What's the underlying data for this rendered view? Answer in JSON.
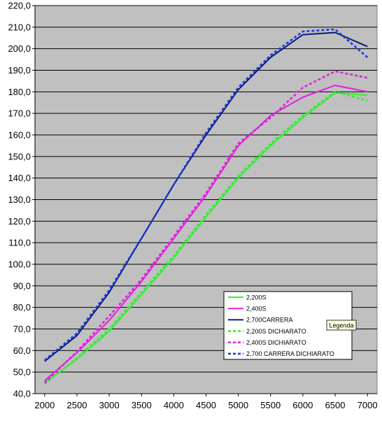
{
  "chart_data": {
    "type": "line",
    "title": "",
    "xlabel": "",
    "ylabel": "",
    "x": [
      2000,
      2500,
      3000,
      3500,
      4000,
      4500,
      5000,
      5500,
      6000,
      6500,
      7000
    ],
    "xlim": [
      1850,
      7150
    ],
    "ylim": [
      40,
      220
    ],
    "x_ticks": [
      "2000",
      "2500",
      "3000",
      "3500",
      "4000",
      "4500",
      "5000",
      "5500",
      "6000",
      "6500",
      "7000"
    ],
    "y_ticks": [
      "40,0",
      "50,0",
      "60,0",
      "70,0",
      "80,0",
      "90,0",
      "100,0",
      "110,0",
      "120,0",
      "130,0",
      "140,0",
      "150,0",
      "160,0",
      "170,0",
      "180,0",
      "190,0",
      "200,0",
      "210,0",
      "220,0"
    ],
    "grid": true,
    "plot_background": "#c0c0c0",
    "legend_position": "lower-right",
    "series": [
      {
        "name": "2,200S",
        "color": "#33ee33",
        "dash": "solid",
        "points": [
          [
            2000,
            45.0
          ],
          [
            2500,
            56.0
          ],
          [
            3000,
            69.0
          ],
          [
            3500,
            86.0
          ],
          [
            4000,
            103.0
          ],
          [
            4500,
            122.0
          ],
          [
            5000,
            140.0
          ],
          [
            5500,
            155.0
          ],
          [
            6000,
            168.0
          ],
          [
            6500,
            179.5
          ],
          [
            7000,
            178.5
          ]
        ]
      },
      {
        "name": "2,400S",
        "color": "#e020e0",
        "dash": "solid",
        "points": [
          [
            2000,
            46.0
          ],
          [
            2500,
            59.0
          ],
          [
            3000,
            74.0
          ],
          [
            3500,
            92.0
          ],
          [
            4000,
            112.0
          ],
          [
            4500,
            132.0
          ],
          [
            5000,
            155.0
          ],
          [
            5500,
            169.0
          ],
          [
            6000,
            177.5
          ],
          [
            6500,
            183.0
          ],
          [
            7000,
            180.0
          ]
        ]
      },
      {
        "name": "2,700CARRERA",
        "color": "#0a1a7a",
        "dash": "solid",
        "points": [
          [
            2000,
            55.0
          ],
          [
            2500,
            67.0
          ],
          [
            3000,
            87.0
          ],
          [
            3500,
            112.0
          ],
          [
            4000,
            137.0
          ],
          [
            4500,
            160.0
          ],
          [
            5000,
            181.0
          ],
          [
            5500,
            196.0
          ],
          [
            6000,
            206.5
          ],
          [
            6500,
            207.5
          ],
          [
            7000,
            201.0
          ]
        ]
      },
      {
        "name": "2,200S DICHIARATO",
        "color": "#33ee33",
        "dash": "dotted",
        "points": [
          [
            2000,
            44.5
          ],
          [
            2500,
            56.5
          ],
          [
            3000,
            70.0
          ],
          [
            3500,
            87.0
          ],
          [
            4000,
            104.0
          ],
          [
            4500,
            123.0
          ],
          [
            5000,
            141.0
          ],
          [
            5500,
            156.0
          ],
          [
            6000,
            169.0
          ],
          [
            6500,
            180.0
          ],
          [
            7000,
            176.0
          ]
        ]
      },
      {
        "name": "2,400S DICHIARATO",
        "color": "#e020e0",
        "dash": "dotted",
        "points": [
          [
            2000,
            45.0
          ],
          [
            2500,
            59.5
          ],
          [
            3000,
            76.0
          ],
          [
            3500,
            93.0
          ],
          [
            4000,
            113.0
          ],
          [
            4500,
            133.0
          ],
          [
            5000,
            156.0
          ],
          [
            5500,
            168.0
          ],
          [
            6000,
            182.0
          ],
          [
            6500,
            189.5
          ],
          [
            7000,
            186.5
          ]
        ]
      },
      {
        "name": "2,700 CARRERA DICHIARATO",
        "color": "#1a3ae0",
        "dash": "dotted",
        "points": [
          [
            2000,
            55.5
          ],
          [
            2500,
            68.0
          ],
          [
            3000,
            88.0
          ],
          [
            3500,
            112.0
          ],
          [
            4000,
            137.0
          ],
          [
            4500,
            161.0
          ],
          [
            5000,
            182.0
          ],
          [
            5500,
            197.0
          ],
          [
            6000,
            208.0
          ],
          [
            6500,
            209.0
          ],
          [
            7000,
            196.0
          ]
        ]
      }
    ]
  },
  "tooltip": {
    "text": "Legenda"
  }
}
